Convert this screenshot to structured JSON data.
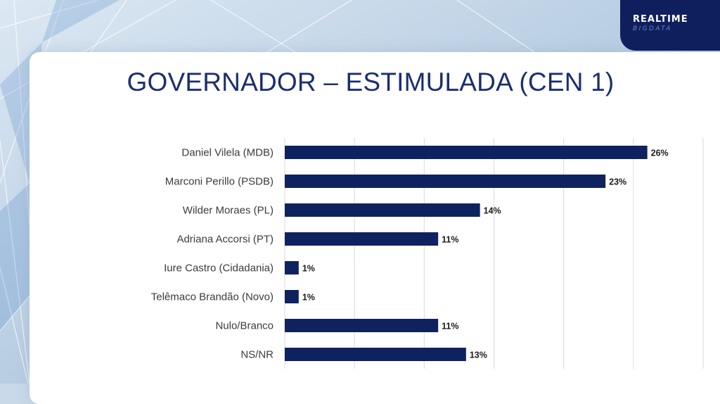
{
  "slide": {
    "title": "GOVERNADOR – ESTIMULADA (CEN 1)"
  },
  "brand": {
    "line1": "REALTIME",
    "line2": "BIGDATA",
    "color": "#0f1f5e"
  },
  "chart_data": {
    "type": "bar",
    "orientation": "horizontal",
    "categories": [
      "Daniel Vilela (MDB)",
      "Marconi Perillo (PSDB)",
      "Wilder Moraes (PL)",
      "Adriana Accorsi (PT)",
      "Iure Castro (Cidadania)",
      "Telêmaco Brandão (Novo)",
      "Nulo/Branco",
      "NS/NR"
    ],
    "values": [
      26,
      23,
      14,
      11,
      1,
      1,
      11,
      13
    ],
    "value_labels": [
      "26%",
      "23%",
      "14%",
      "11%",
      "1%",
      "1%",
      "11%",
      "13%"
    ],
    "xlim": [
      0,
      30
    ],
    "grid": true,
    "bar_color": "#0f2260"
  }
}
